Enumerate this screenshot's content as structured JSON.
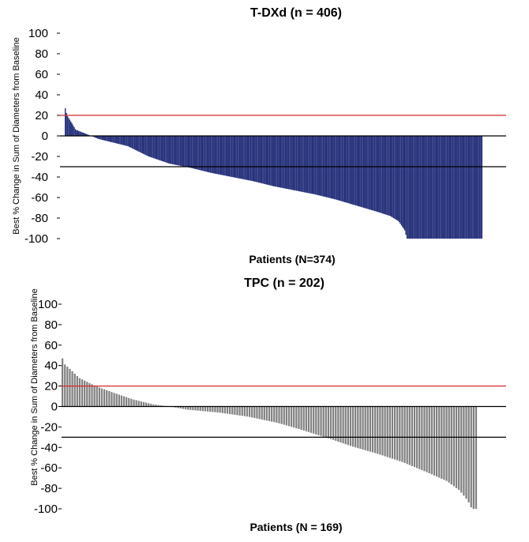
{
  "chart_data": [
    {
      "type": "bar",
      "title": "T-DXd (n = 406)",
      "xlabel": "Patients (N=374)",
      "ylabel": "Best % Change in Sum of Diameters from Baseline",
      "ylim": [
        -100,
        100
      ],
      "yticks": [
        100,
        80,
        60,
        40,
        20,
        0,
        -20,
        -40,
        -60,
        -80,
        -100
      ],
      "reference_lines": [
        {
          "y": 20,
          "color": "#d62728"
        },
        {
          "y": 0,
          "color": "#000000"
        },
        {
          "y": -30,
          "color": "#000000"
        }
      ],
      "bar_color": "#25307a",
      "n_bars": 374,
      "waterfall_profile": [
        [
          0,
          27
        ],
        [
          0.004,
          20
        ],
        [
          0.012,
          15
        ],
        [
          0.025,
          6
        ],
        [
          0.05,
          2
        ],
        [
          0.08,
          -3
        ],
        [
          0.15,
          -10
        ],
        [
          0.2,
          -20
        ],
        [
          0.25,
          -27
        ],
        [
          0.3,
          -31
        ],
        [
          0.35,
          -36
        ],
        [
          0.4,
          -40
        ],
        [
          0.45,
          -44
        ],
        [
          0.5,
          -49
        ],
        [
          0.55,
          -53
        ],
        [
          0.6,
          -57
        ],
        [
          0.65,
          -62
        ],
        [
          0.7,
          -68
        ],
        [
          0.75,
          -74
        ],
        [
          0.78,
          -78
        ],
        [
          0.8,
          -83
        ],
        [
          0.815,
          -92
        ],
        [
          0.82,
          -100
        ],
        [
          1,
          -100
        ]
      ]
    },
    {
      "type": "bar",
      "title": "TPC (n = 202)",
      "xlabel": "Patients (N = 169)",
      "ylabel": "Best % Change in Sum of Diameters from Baseline",
      "ylim": [
        -100,
        100
      ],
      "yticks": [
        100,
        80,
        60,
        40,
        20,
        0,
        -20,
        -40,
        -60,
        -80,
        -100
      ],
      "reference_lines": [
        {
          "y": 20,
          "color": "#d62728"
        },
        {
          "y": 0,
          "color": "#000000"
        },
        {
          "y": -30,
          "color": "#000000"
        }
      ],
      "bar_color": "#808080",
      "n_bars": 169,
      "waterfall_profile": [
        [
          0,
          47
        ],
        [
          0.006,
          41
        ],
        [
          0.02,
          36
        ],
        [
          0.04,
          28
        ],
        [
          0.08,
          20
        ],
        [
          0.12,
          14
        ],
        [
          0.17,
          7
        ],
        [
          0.22,
          2
        ],
        [
          0.26,
          0
        ],
        [
          0.3,
          -3
        ],
        [
          0.38,
          -6
        ],
        [
          0.45,
          -10
        ],
        [
          0.52,
          -16
        ],
        [
          0.58,
          -23
        ],
        [
          0.65,
          -32
        ],
        [
          0.7,
          -39
        ],
        [
          0.76,
          -46
        ],
        [
          0.82,
          -54
        ],
        [
          0.88,
          -64
        ],
        [
          0.93,
          -73
        ],
        [
          0.96,
          -82
        ],
        [
          0.98,
          -92
        ],
        [
          0.99,
          -100
        ],
        [
          1,
          -100
        ]
      ]
    }
  ]
}
